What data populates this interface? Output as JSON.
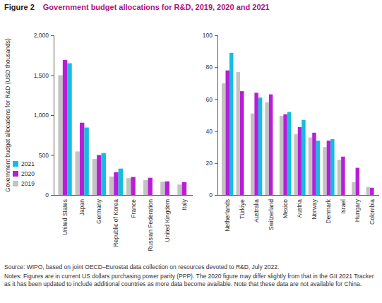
{
  "figure_label": "Figure 2",
  "title": "Government budget allocations for R&D, 2019, 2020 and 2021",
  "source": "Source: WIPO, based on joint OECD–Eurostat data collection on resources devoted to R&D, July 2022.",
  "notes": "Notes: Figures are in current US dollars purchasing power parity (PPP). The 2020 figure may differ slightly from that in the GII 2021 Tracker as it has been updated to include additional countries as more data become available. Note that these data are not available for China.",
  "chart_data": [
    {
      "type": "bar",
      "y_label": "Government budget allocations for R&D (USD thousands)",
      "categories": [
        "United States",
        "Japan",
        "Germany",
        "Republic of Korea",
        "France",
        "Russian Federation",
        "United Kingdom",
        "Italy"
      ],
      "series": [
        {
          "name": "2019",
          "color": "#c3c3c3",
          "values": [
            1500,
            545,
            450,
            230,
            210,
            185,
            165,
            130
          ]
        },
        {
          "name": "2020",
          "color": "#b81ed6",
          "values": [
            1690,
            905,
            500,
            285,
            225,
            215,
            170,
            160
          ]
        },
        {
          "name": "2021",
          "color": "#13bde0",
          "values": [
            1650,
            845,
            525,
            330,
            null,
            null,
            null,
            null
          ]
        }
      ],
      "ylim": [
        0,
        2000
      ],
      "yticks": [
        0,
        500,
        {
          "value": 1000,
          "label": "1,000"
        },
        {
          "value": 1500,
          "label": "1,500"
        },
        {
          "value": 2000,
          "label": "2,000"
        }
      ],
      "legend": "left",
      "grid": false
    },
    {
      "type": "bar",
      "categories": [
        "Netherlands",
        "Türkiye",
        "Australia",
        "Switzerland",
        "Mexico",
        "Austria",
        "Norway",
        "Denmark",
        "Israel",
        "Hungary",
        "Colombia"
      ],
      "series": [
        {
          "color": "#c3c3c3",
          "values": [
            70,
            77,
            51,
            58,
            49.5,
            38,
            36,
            30,
            22,
            8,
            5
          ]
        },
        {
          "color": "#b81ed6",
          "values": [
            78,
            65,
            64,
            63,
            50.5,
            42.5,
            39,
            34,
            24,
            17,
            4.5
          ]
        },
        {
          "color": "#13bde0",
          "values": [
            89,
            null,
            61,
            null,
            52,
            47,
            34,
            35,
            null,
            null,
            null
          ]
        }
      ],
      "ylim": [
        0,
        100
      ],
      "yticks": [
        0,
        20,
        40,
        60,
        80,
        100
      ],
      "grid": false
    }
  ]
}
